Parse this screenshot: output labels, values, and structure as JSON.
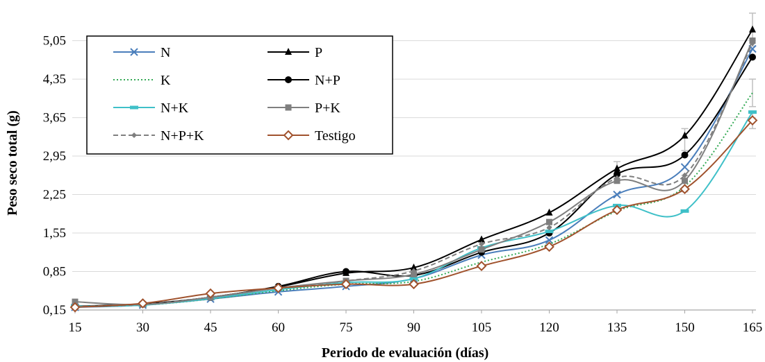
{
  "chart_data": {
    "type": "line",
    "title": "",
    "xlabel": "Periodo de evaluación (días)",
    "ylabel": "Peso seco total (g)",
    "x": [
      15,
      30,
      45,
      60,
      75,
      90,
      105,
      120,
      135,
      150,
      165
    ],
    "x_tick_labels": [
      "15",
      "30",
      "45",
      "60",
      "75",
      "90",
      "105",
      "120",
      "135",
      "150",
      "165"
    ],
    "ylim": [
      0.15,
      5.6
    ],
    "y_ticks": [
      0.15,
      0.85,
      1.55,
      2.25,
      2.95,
      3.65,
      4.35,
      5.05
    ],
    "y_tick_labels": [
      "0,15",
      "0,85",
      "1,55",
      "2,25",
      "2,95",
      "3,65",
      "4,35",
      "5,05"
    ],
    "grid": "horizontal",
    "legend_position": "top-left",
    "series": [
      {
        "name": "N",
        "color": "#4a7ebb",
        "dash": "solid",
        "marker": "x",
        "values": [
          0.2,
          0.24,
          0.35,
          0.48,
          0.58,
          0.72,
          1.15,
          1.42,
          2.25,
          2.75,
          4.9
        ]
      },
      {
        "name": "P",
        "color": "#000000",
        "dash": "solid",
        "marker": "triangle",
        "values": [
          0.22,
          0.25,
          0.38,
          0.57,
          0.82,
          0.92,
          1.43,
          1.92,
          2.72,
          3.32,
          5.25
        ]
      },
      {
        "name": "K",
        "color": "#33aa55",
        "dash": "dotted",
        "marker": "none",
        "values": [
          0.21,
          0.24,
          0.35,
          0.5,
          0.62,
          0.67,
          1.02,
          1.35,
          1.95,
          2.4,
          4.1
        ]
      },
      {
        "name": "N+P",
        "color": "#000000",
        "dash": "solid",
        "marker": "circle",
        "values": [
          0.22,
          0.26,
          0.38,
          0.58,
          0.85,
          0.78,
          1.2,
          1.55,
          2.62,
          2.97,
          4.75
        ]
      },
      {
        "name": "N+K",
        "color": "#3fc0c8",
        "dash": "solid",
        "marker": "bar",
        "values": [
          0.22,
          0.24,
          0.36,
          0.52,
          0.65,
          0.72,
          1.28,
          1.58,
          2.05,
          1.95,
          3.75
        ]
      },
      {
        "name": "P+K",
        "color": "#7f7f7f",
        "dash": "solid",
        "marker": "square",
        "values": [
          0.3,
          0.25,
          0.38,
          0.55,
          0.68,
          0.8,
          1.25,
          1.75,
          2.5,
          2.5,
          5.05
        ]
      },
      {
        "name": "N+P+K",
        "color": "#7f7f7f",
        "dash": "dashed",
        "marker": "diamond-small",
        "values": [
          0.22,
          0.25,
          0.38,
          0.55,
          0.68,
          0.86,
          1.35,
          1.65,
          2.55,
          2.6,
          5.0
        ]
      },
      {
        "name": "Testigo",
        "color": "#a0522d",
        "dash": "solid",
        "marker": "diamond-open",
        "values": [
          0.2,
          0.27,
          0.45,
          0.55,
          0.62,
          0.62,
          0.95,
          1.3,
          1.97,
          2.35,
          3.6
        ]
      }
    ],
    "error_bars": [
      {
        "x": 135,
        "low": 2.6,
        "high": 2.85
      },
      {
        "x": 150,
        "low": 3.05,
        "high": 3.45
      },
      {
        "x": 150,
        "low": 2.3,
        "high": 2.6
      },
      {
        "x": 165,
        "low": 4.95,
        "high": 5.55
      },
      {
        "x": 165,
        "low": 3.85,
        "high": 4.35
      },
      {
        "x": 165,
        "low": 3.45,
        "high": 3.75
      }
    ],
    "colors": {
      "error_bar": "#bfbfbf",
      "grid": "#d9d9d9",
      "axis": "#a6a6a6"
    }
  }
}
